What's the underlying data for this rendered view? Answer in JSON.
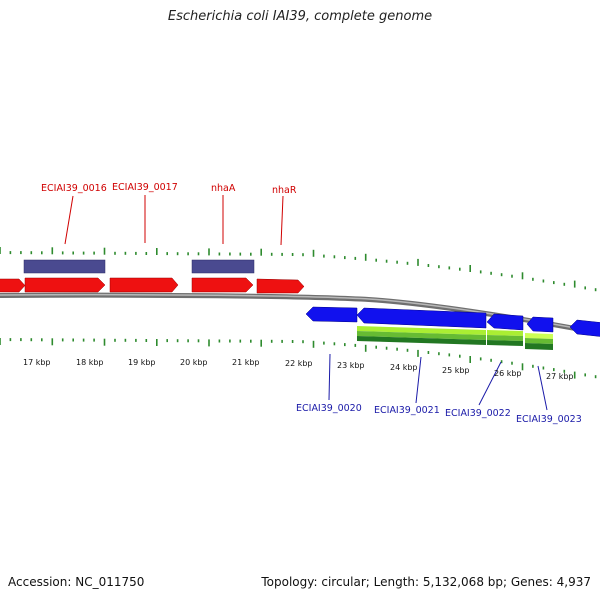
{
  "title": "Escherichia coli IAI39, complete genome",
  "footer": {
    "accession": "Accession: NC_011750",
    "summary": "Topology: circular; Length: 5,132,068 bp; Genes: 4,937"
  },
  "colors": {
    "cds_forward": "#ee1111",
    "cds_reverse": "#1111ee",
    "gene_bar": "#4a4a90",
    "backbone": "#8a8a8a",
    "tick": "#2e8b2e",
    "label_forward": "#d00000",
    "label_reverse": "#1a1aa8",
    "gc_light": "#aaee33",
    "gc_dark": "#227722"
  },
  "scale_labels": [
    "17 kbp",
    "18 kbp",
    "19 kbp",
    "20 kbp",
    "21 kbp",
    "22 kbp",
    "23 kbp",
    "24 kbp",
    "25 kbp",
    "26 kbp",
    "27 kbp"
  ],
  "forward_gene_labels": [
    "ECIAI39_0016",
    "ECIAI39_0017",
    "nhaA",
    "nhaR"
  ],
  "reverse_gene_labels": [
    "ECIAI39_0020",
    "ECIAI39_0021",
    "ECIAI39_0022",
    "ECIAI39_0023"
  ]
}
